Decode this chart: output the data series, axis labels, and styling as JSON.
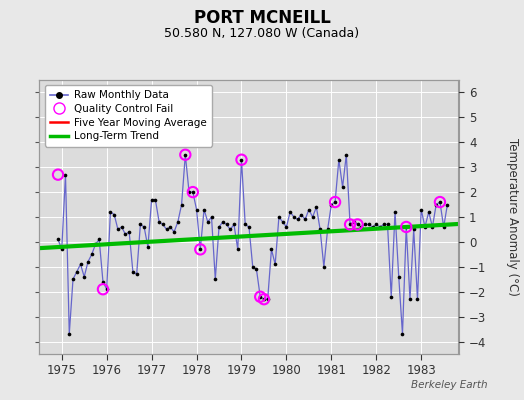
{
  "title": "PORT MCNEILL",
  "subtitle": "50.580 N, 127.080 W (Canada)",
  "ylabel": "Temperature Anomaly (°C)",
  "credit": "Berkeley Earth",
  "ylim": [
    -4.5,
    6.5
  ],
  "xlim": [
    1974.5,
    1983.83
  ],
  "yticks": [
    -4,
    -3,
    -2,
    -1,
    0,
    1,
    2,
    3,
    4,
    5,
    6
  ],
  "xticks": [
    1975,
    1976,
    1977,
    1978,
    1979,
    1980,
    1981,
    1982,
    1983
  ],
  "fig_bg_color": "#e8e8e8",
  "plot_bg_color": "#dcdcdc",
  "raw_line_color": "#6666cc",
  "raw_marker_color": "black",
  "qc_fail_color": "magenta",
  "moving_avg_color": "red",
  "trend_color": "#00bb00",
  "raw_data": [
    [
      1974.917,
      0.1
    ],
    [
      1975.0,
      -0.3
    ],
    [
      1975.083,
      2.7
    ],
    [
      1975.167,
      -3.7
    ],
    [
      1975.25,
      -1.5
    ],
    [
      1975.333,
      -1.2
    ],
    [
      1975.417,
      -0.9
    ],
    [
      1975.5,
      -1.4
    ],
    [
      1975.583,
      -0.8
    ],
    [
      1975.667,
      -0.5
    ],
    [
      1975.75,
      -0.1
    ],
    [
      1975.833,
      0.1
    ],
    [
      1975.917,
      -1.6
    ],
    [
      1976.0,
      -1.9
    ],
    [
      1976.083,
      1.2
    ],
    [
      1976.167,
      1.1
    ],
    [
      1976.25,
      0.5
    ],
    [
      1976.333,
      0.6
    ],
    [
      1976.417,
      0.3
    ],
    [
      1976.5,
      0.4
    ],
    [
      1976.583,
      -1.2
    ],
    [
      1976.667,
      -1.3
    ],
    [
      1976.75,
      0.7
    ],
    [
      1976.833,
      0.6
    ],
    [
      1976.917,
      -0.2
    ],
    [
      1977.0,
      1.7
    ],
    [
      1977.083,
      1.7
    ],
    [
      1977.167,
      0.8
    ],
    [
      1977.25,
      0.7
    ],
    [
      1977.333,
      0.5
    ],
    [
      1977.417,
      0.6
    ],
    [
      1977.5,
      0.4
    ],
    [
      1977.583,
      0.8
    ],
    [
      1977.667,
      1.5
    ],
    [
      1977.75,
      3.5
    ],
    [
      1977.833,
      2.0
    ],
    [
      1977.917,
      2.0
    ],
    [
      1978.0,
      1.3
    ],
    [
      1978.083,
      -0.3
    ],
    [
      1978.167,
      1.3
    ],
    [
      1978.25,
      0.8
    ],
    [
      1978.333,
      1.0
    ],
    [
      1978.417,
      -1.5
    ],
    [
      1978.5,
      0.6
    ],
    [
      1978.583,
      0.8
    ],
    [
      1978.667,
      0.7
    ],
    [
      1978.75,
      0.5
    ],
    [
      1978.833,
      0.7
    ],
    [
      1978.917,
      -0.3
    ],
    [
      1979.0,
      3.3
    ],
    [
      1979.083,
      0.7
    ],
    [
      1979.167,
      0.6
    ],
    [
      1979.25,
      -1.0
    ],
    [
      1979.333,
      -1.1
    ],
    [
      1979.417,
      -2.2
    ],
    [
      1979.5,
      -2.3
    ],
    [
      1979.583,
      -2.3
    ],
    [
      1979.667,
      -0.3
    ],
    [
      1979.75,
      -0.9
    ],
    [
      1979.833,
      1.0
    ],
    [
      1979.917,
      0.8
    ],
    [
      1980.0,
      0.6
    ],
    [
      1980.083,
      1.2
    ],
    [
      1980.167,
      1.0
    ],
    [
      1980.25,
      0.9
    ],
    [
      1980.333,
      1.1
    ],
    [
      1980.417,
      0.9
    ],
    [
      1980.5,
      1.3
    ],
    [
      1980.583,
      1.0
    ],
    [
      1980.667,
      1.4
    ],
    [
      1980.75,
      0.5
    ],
    [
      1980.833,
      -1.0
    ],
    [
      1980.917,
      0.5
    ],
    [
      1981.0,
      1.5
    ],
    [
      1981.083,
      1.6
    ],
    [
      1981.167,
      3.3
    ],
    [
      1981.25,
      2.2
    ],
    [
      1981.333,
      3.5
    ],
    [
      1981.417,
      0.7
    ],
    [
      1981.5,
      0.8
    ],
    [
      1981.583,
      0.7
    ],
    [
      1981.667,
      0.6
    ],
    [
      1981.75,
      0.7
    ],
    [
      1981.833,
      0.7
    ],
    [
      1981.917,
      0.6
    ],
    [
      1982.0,
      0.7
    ],
    [
      1982.083,
      0.6
    ],
    [
      1982.167,
      0.7
    ],
    [
      1982.25,
      0.7
    ],
    [
      1982.333,
      -2.2
    ],
    [
      1982.417,
      1.2
    ],
    [
      1982.5,
      -1.4
    ],
    [
      1982.583,
      -3.7
    ],
    [
      1982.667,
      0.6
    ],
    [
      1982.75,
      -2.3
    ],
    [
      1982.833,
      0.5
    ],
    [
      1982.917,
      -2.3
    ],
    [
      1983.0,
      1.3
    ],
    [
      1983.083,
      0.6
    ],
    [
      1983.167,
      1.2
    ],
    [
      1983.25,
      0.6
    ],
    [
      1983.333,
      1.5
    ],
    [
      1983.417,
      1.6
    ],
    [
      1983.5,
      0.6
    ],
    [
      1983.583,
      1.5
    ]
  ],
  "qc_fail_points": [
    [
      1974.917,
      2.7
    ],
    [
      1975.917,
      -1.9
    ],
    [
      1977.75,
      3.5
    ],
    [
      1977.917,
      2.0
    ],
    [
      1978.083,
      -0.3
    ],
    [
      1979.0,
      3.3
    ],
    [
      1979.417,
      -2.2
    ],
    [
      1979.5,
      -2.3
    ],
    [
      1981.083,
      1.6
    ],
    [
      1981.417,
      0.7
    ],
    [
      1981.583,
      0.7
    ],
    [
      1982.667,
      0.6
    ],
    [
      1983.417,
      1.6
    ]
  ],
  "trend_line": [
    [
      1974.5,
      -0.25
    ],
    [
      1983.83,
      0.72
    ]
  ],
  "legend_labels": [
    "Raw Monthly Data",
    "Quality Control Fail",
    "Five Year Moving Average",
    "Long-Term Trend"
  ]
}
